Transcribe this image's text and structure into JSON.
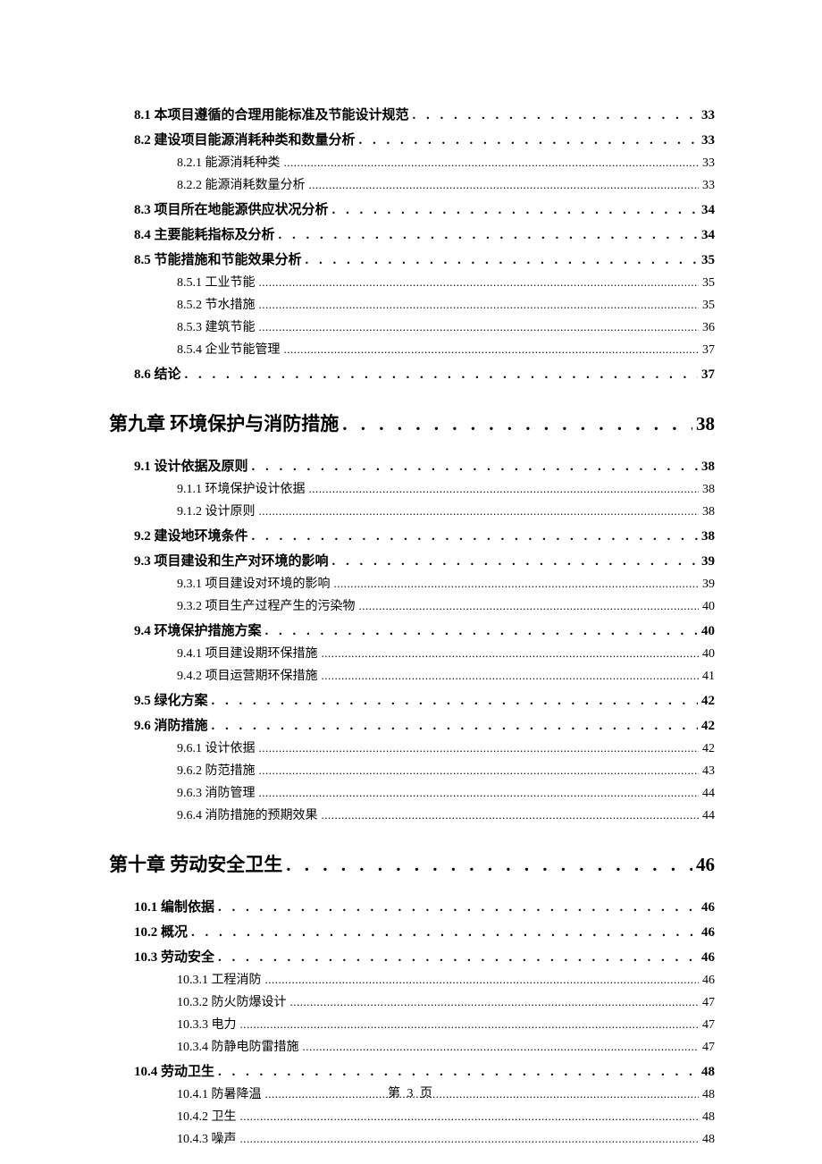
{
  "footer": "第 3 页",
  "entries": [
    {
      "level": "section",
      "label": "8.1 本项目遵循的合理用能标准及节能设计规范",
      "page": "33"
    },
    {
      "level": "section",
      "label": "8.2 建设项目能源消耗种类和数量分析",
      "page": "33"
    },
    {
      "level": "subsection",
      "label": "8.2.1 能源消耗种类",
      "page": "33"
    },
    {
      "level": "subsection",
      "label": "8.2.2 能源消耗数量分析",
      "page": "33"
    },
    {
      "level": "section",
      "label": "8.3 项目所在地能源供应状况分析",
      "page": "34"
    },
    {
      "level": "section",
      "label": "8.4 主要能耗指标及分析",
      "page": "34"
    },
    {
      "level": "section",
      "label": "8.5 节能措施和节能效果分析",
      "page": "35"
    },
    {
      "level": "subsection",
      "label": "8.5.1 工业节能",
      "page": "35"
    },
    {
      "level": "subsection",
      "label": "8.5.2 节水措施",
      "page": "35"
    },
    {
      "level": "subsection",
      "label": "8.5.3 建筑节能",
      "page": "36"
    },
    {
      "level": "subsection",
      "label": "8.5.4 企业节能管理",
      "page": "37"
    },
    {
      "level": "section",
      "label": "8.6 结论",
      "page": "37"
    },
    {
      "level": "chapter",
      "label": "第九章  环境保护与消防措施",
      "page": "38"
    },
    {
      "level": "section",
      "label": "9.1 设计依据及原则",
      "page": "38"
    },
    {
      "level": "subsection",
      "label": "9.1.1 环境保护设计依据",
      "page": "38"
    },
    {
      "level": "subsection",
      "label": "9.1.2 设计原则",
      "page": "38"
    },
    {
      "level": "section",
      "label": "9.2 建设地环境条件",
      "page": "38"
    },
    {
      "level": "section",
      "label": "9.3  项目建设和生产对环境的影响",
      "page": "39"
    },
    {
      "level": "subsection",
      "label": "9.3.1  项目建设对环境的影响",
      "page": "39"
    },
    {
      "level": "subsection",
      "label": "9.3.2  项目生产过程产生的污染物",
      "page": "40"
    },
    {
      "level": "section",
      "label": "9.4  环境保护措施方案",
      "page": "40"
    },
    {
      "level": "subsection",
      "label": "9.4.1  项目建设期环保措施",
      "page": "40"
    },
    {
      "level": "subsection",
      "label": "9.4.2  项目运营期环保措施",
      "page": "41"
    },
    {
      "level": "section",
      "label": "9.5 绿化方案",
      "page": "42"
    },
    {
      "level": "section",
      "label": "9.6 消防措施",
      "page": "42"
    },
    {
      "level": "subsection",
      "label": "9.6.1 设计依据",
      "page": "42"
    },
    {
      "level": "subsection",
      "label": "9.6.2 防范措施",
      "page": "43"
    },
    {
      "level": "subsection",
      "label": "9.6.3 消防管理",
      "page": "44"
    },
    {
      "level": "subsection",
      "label": "9.6.4 消防措施的预期效果",
      "page": "44"
    },
    {
      "level": "chapter",
      "label": "第十章  劳动安全卫生",
      "page": "46"
    },
    {
      "level": "section",
      "label": "10.1  编制依据",
      "page": "46"
    },
    {
      "level": "section",
      "label": "10.2 概况",
      "page": "46"
    },
    {
      "level": "section",
      "label": "10.3  劳动安全",
      "page": "46"
    },
    {
      "level": "subsection",
      "label": "10.3.1 工程消防",
      "page": "46"
    },
    {
      "level": "subsection",
      "label": "10.3.2 防火防爆设计",
      "page": "47"
    },
    {
      "level": "subsection",
      "label": "10.3.3 电力",
      "page": "47"
    },
    {
      "level": "subsection",
      "label": "10.3.4 防静电防雷措施",
      "page": "47"
    },
    {
      "level": "section",
      "label": "10.4 劳动卫生",
      "page": "48"
    },
    {
      "level": "subsection",
      "label": "10.4.1 防暑降温",
      "page": "48"
    },
    {
      "level": "subsection",
      "label": "10.4.2 卫生",
      "page": "48"
    },
    {
      "level": "subsection",
      "label": "10.4.3 噪声",
      "page": "48"
    }
  ]
}
